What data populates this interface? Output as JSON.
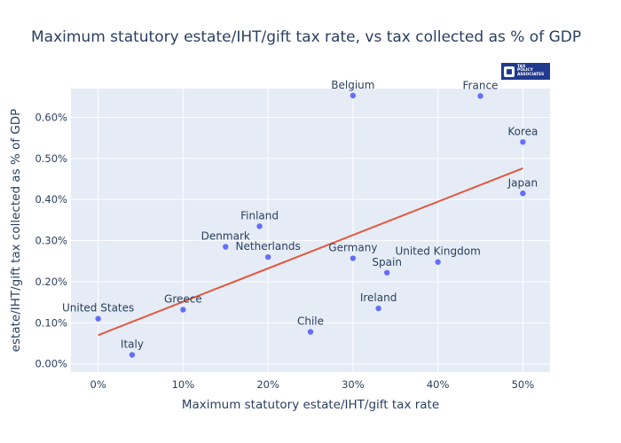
{
  "chart_data": {
    "type": "scatter",
    "title": "Maximum statutory estate/IHT/gift tax rate, vs tax collected as % of GDP",
    "xlabel": "Maximum statutory estate/IHT/gift tax rate",
    "ylabel": "estate/IHT/gift tax collected as % of GDP",
    "xlim": [
      -0.032,
      0.532
    ],
    "ylim": [
      -0.0002,
      0.0067
    ],
    "x_ticks": [
      0,
      0.1,
      0.2,
      0.3,
      0.4,
      0.5
    ],
    "x_tick_labels": [
      "0%",
      "10%",
      "20%",
      "30%",
      "40%",
      "50%"
    ],
    "y_ticks": [
      0,
      0.001,
      0.002,
      0.003,
      0.004,
      0.005,
      0.006
    ],
    "y_tick_labels": [
      "0.00%",
      "0.10%",
      "0.20%",
      "0.30%",
      "0.40%",
      "0.50%",
      "0.60%"
    ],
    "points": [
      {
        "label": "United States",
        "x": 0.0,
        "y": 0.0011
      },
      {
        "label": "Italy",
        "x": 0.04,
        "y": 0.00022
      },
      {
        "label": "Greece",
        "x": 0.1,
        "y": 0.00132
      },
      {
        "label": "Denmark",
        "x": 0.15,
        "y": 0.00285
      },
      {
        "label": "Finland",
        "x": 0.19,
        "y": 0.00335
      },
      {
        "label": "Netherlands",
        "x": 0.2,
        "y": 0.0026
      },
      {
        "label": "Chile",
        "x": 0.25,
        "y": 0.00078
      },
      {
        "label": "Belgium",
        "x": 0.3,
        "y": 0.00653
      },
      {
        "label": "Germany",
        "x": 0.3,
        "y": 0.00257
      },
      {
        "label": "Ireland",
        "x": 0.33,
        "y": 0.00135
      },
      {
        "label": "Spain",
        "x": 0.34,
        "y": 0.00222
      },
      {
        "label": "United Kingdom",
        "x": 0.4,
        "y": 0.00248
      },
      {
        "label": "France",
        "x": 0.45,
        "y": 0.00652
      },
      {
        "label": "Korea",
        "x": 0.5,
        "y": 0.0054
      },
      {
        "label": "Japan",
        "x": 0.5,
        "y": 0.00415
      }
    ],
    "trendline": {
      "x": [
        0.0,
        0.5
      ],
      "y": [
        0.0007,
        0.00476
      ]
    },
    "colors": {
      "point": "#636efa",
      "trendline": "#e4573f",
      "plot_bg": "#e5ecf6",
      "text": "#2a3f5f"
    }
  },
  "logo": {
    "text_lines": [
      "TAX",
      "POLICY",
      "ASSOCIATES"
    ]
  }
}
